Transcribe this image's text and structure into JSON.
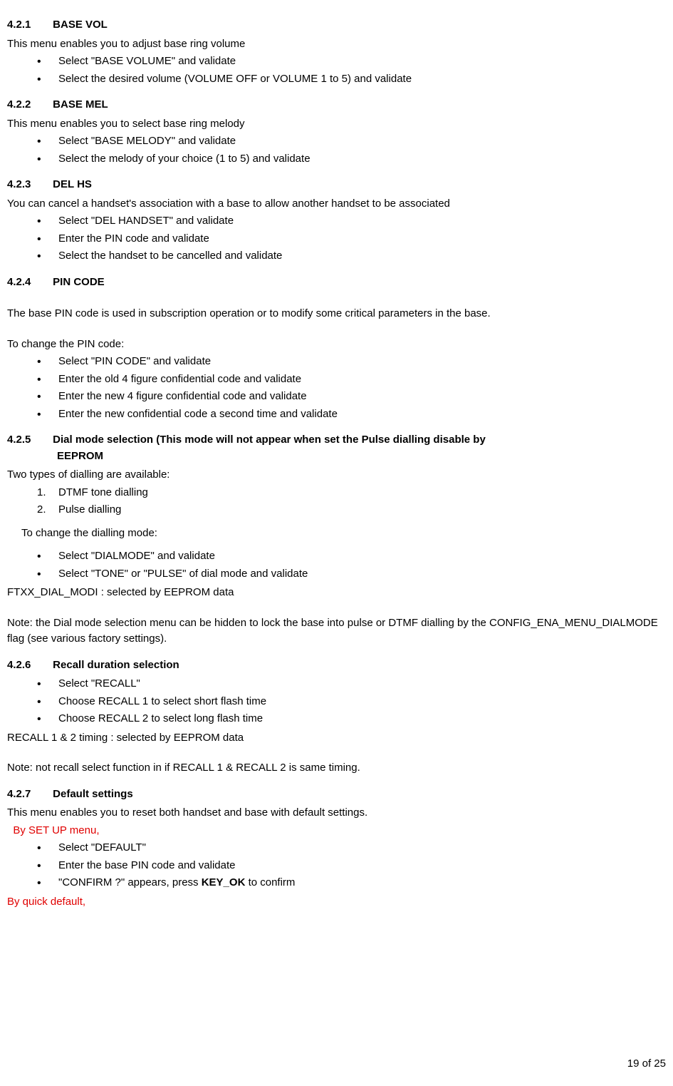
{
  "colors": {
    "text": "#000000",
    "red": "#e00000",
    "background": "#ffffff"
  },
  "typography": {
    "font_family": "Arial",
    "font_size_pt": 11,
    "heading_weight": "bold"
  },
  "s421": {
    "num": "4.2.1",
    "title": "BASE VOL",
    "intro": "This menu enables you to adjust base ring volume",
    "items": [
      "Select \"BASE VOLUME\" and validate",
      "Select the desired volume (VOLUME OFF or VOLUME 1 to 5) and validate"
    ]
  },
  "s422": {
    "num": "4.2.2",
    "title": "BASE MEL",
    "intro": "This menu enables you to select base ring melody",
    "items": [
      "Select \"BASE MELODY\" and validate",
      "Select the melody of your choice (1 to 5) and validate"
    ]
  },
  "s423": {
    "num": "4.2.3",
    "title": "DEL HS",
    "intro": "You can cancel a handset's association with a base to allow another handset to be associated",
    "items": [
      "Select \"DEL HANDSET\" and validate",
      "Enter the PIN code and validate",
      "Select the handset to be cancelled and validate"
    ]
  },
  "s424": {
    "num": "4.2.4",
    "title": "PIN CODE",
    "para1": "The base PIN code is used in subscription operation or to modify some critical parameters in the base.",
    "para2": "To change the PIN code:",
    "items": [
      "Select \"PIN CODE\" and validate",
      "Enter the old 4 figure confidential code and validate",
      "Enter the new 4 figure confidential code and validate",
      "Enter the new confidential code a second time and validate"
    ]
  },
  "s425": {
    "num": "4.2.5",
    "title_line1": "Dial mode selection (This mode will not appear when set the Pulse dialling disable by",
    "title_line2": "EEPROM",
    "intro": "Two types of dialling are available:",
    "numbered": [
      {
        "n": "1.",
        "t": "DTMF tone dialling"
      },
      {
        "n": "2.",
        "t": "Pulse dialling"
      }
    ],
    "change": "To change the dialling mode:",
    "items": [
      "Select \"DIALMODE\" and validate",
      "Select \"TONE\" or \"PULSE\" of dial mode and validate"
    ],
    "ftxx": "FTXX_DIAL_MODI : selected by EEPROM data",
    "note": "Note: the Dial mode selection menu can be hidden to lock the base into pulse or DTMF dialling by the CONFIG_ENA_MENU_DIALMODE flag (see various factory settings)."
  },
  "s426": {
    "num": "4.2.6",
    "title": "Recall duration selection",
    "items": [
      "Select \"RECALL\"",
      "Choose RECALL 1 to select short flash time",
      "Choose RECALL 2 to select long flash time"
    ],
    "timing": "RECALL 1 & 2 timing : selected by EEPROM data",
    "note": "Note: not recall select function in if RECALL 1 & RECALL 2 is same timing."
  },
  "s427": {
    "num": "4.2.7",
    "title": "Default settings",
    "intro": "This menu enables you to reset both handset and base with default settings.",
    "red1": "  By SET UP menu,",
    "items": [
      {
        "text": "Select \"DEFAULT\""
      },
      {
        "text": "Enter the base PIN code and validate"
      },
      {
        "pre": "\"CONFIRM ?\" appears, press ",
        "bold": "KEY_OK",
        "post": " to confirm"
      }
    ],
    "red2": "By quick default,"
  },
  "page": "19 of 25"
}
